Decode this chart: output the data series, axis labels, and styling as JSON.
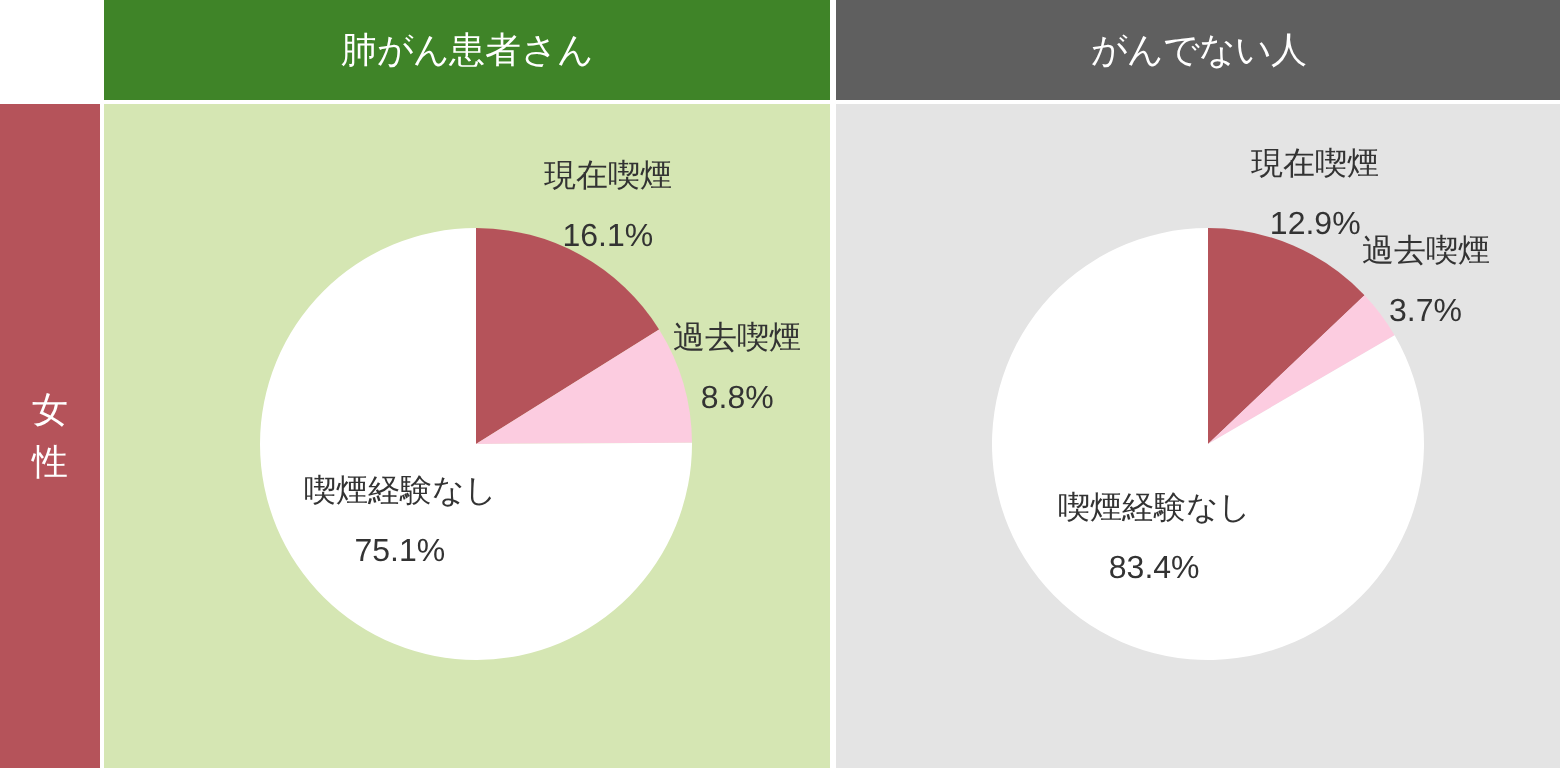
{
  "chart_data": [
    {
      "type": "pie",
      "title": "肺がん患者さん",
      "ylabel": "女性",
      "categories": [
        "現在喫煙",
        "過去喫煙",
        "喫煙経験なし"
      ],
      "values": [
        16.1,
        8.8,
        75.1
      ],
      "value_labels": [
        "16.1%",
        "8.8%",
        "75.1%"
      ],
      "colors": [
        "#b5535a",
        "#fccce0",
        "#ffffff"
      ]
    },
    {
      "type": "pie",
      "title": "がんでない人",
      "categories": [
        "現在喫煙",
        "過去喫煙",
        "喫煙経験なし"
      ],
      "values": [
        12.9,
        3.7,
        83.4
      ],
      "value_labels": [
        "12.9%",
        "3.7%",
        "83.4%"
      ],
      "colors": [
        "#b5535a",
        "#fccce0",
        "#ffffff"
      ]
    }
  ]
}
